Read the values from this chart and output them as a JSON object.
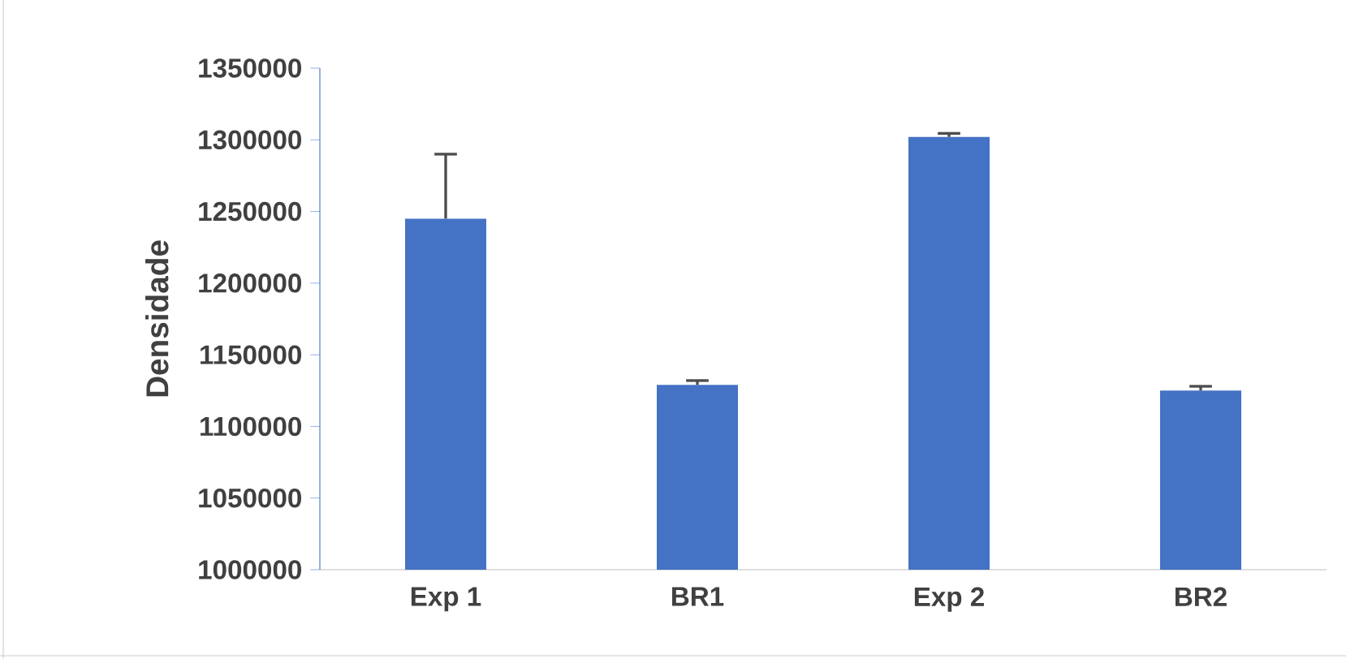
{
  "chart_data": {
    "type": "bar",
    "ylabel": "Densidade",
    "categories": [
      "Exp 1",
      "BR1",
      "Exp 2",
      "BR2"
    ],
    "values": [
      1245000,
      1129000,
      1302000,
      1125000
    ],
    "errors": [
      45000,
      3000,
      2500,
      3000
    ],
    "color": "#4472c4",
    "ylim": [
      1000000,
      1350000
    ],
    "yticks": [
      1000000,
      1050000,
      1100000,
      1150000,
      1200000,
      1250000,
      1300000,
      1350000
    ],
    "grid": false
  }
}
